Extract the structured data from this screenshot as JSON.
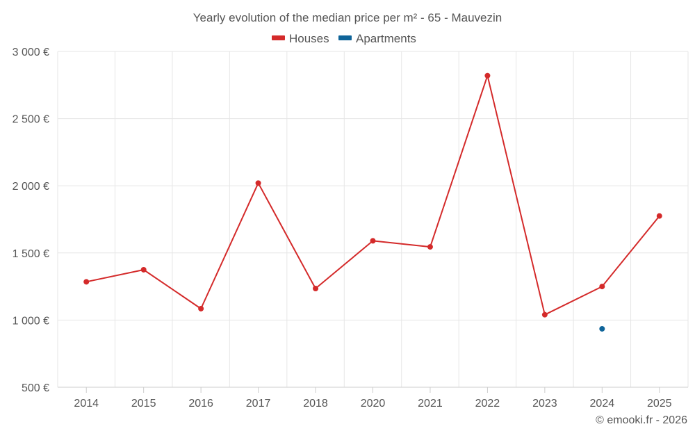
{
  "chart_data": {
    "type": "line",
    "title": "Yearly evolution of the median price per m² - 65 - Mauvezin",
    "xlabel": "",
    "ylabel": "",
    "categories": [
      "2014",
      "2015",
      "2016",
      "2017",
      "2018",
      "2020",
      "2021",
      "2022",
      "2023",
      "2024",
      "2025"
    ],
    "ylim": [
      500,
      3000
    ],
    "yticks": [
      500,
      1000,
      1500,
      2000,
      2500,
      3000
    ],
    "ytick_labels": [
      "500 €",
      "1 000 €",
      "1 500 €",
      "2 000 €",
      "2 500 €",
      "3 000 €"
    ],
    "grid": true,
    "legend_position": "top-center",
    "series": [
      {
        "name": "Houses",
        "color": "#d42a2a",
        "values": [
          1285,
          1375,
          1085,
          2020,
          1235,
          1590,
          1545,
          2820,
          1040,
          1250,
          1775
        ]
      },
      {
        "name": "Apartments",
        "color": "#0f6499",
        "values": [
          null,
          null,
          null,
          null,
          null,
          null,
          null,
          null,
          null,
          935,
          null
        ]
      }
    ]
  },
  "credit": "© emooki.fr - 2026",
  "colors": {
    "grid": "#e6e6e6",
    "axis": "#cccccc",
    "text": "#555555"
  }
}
